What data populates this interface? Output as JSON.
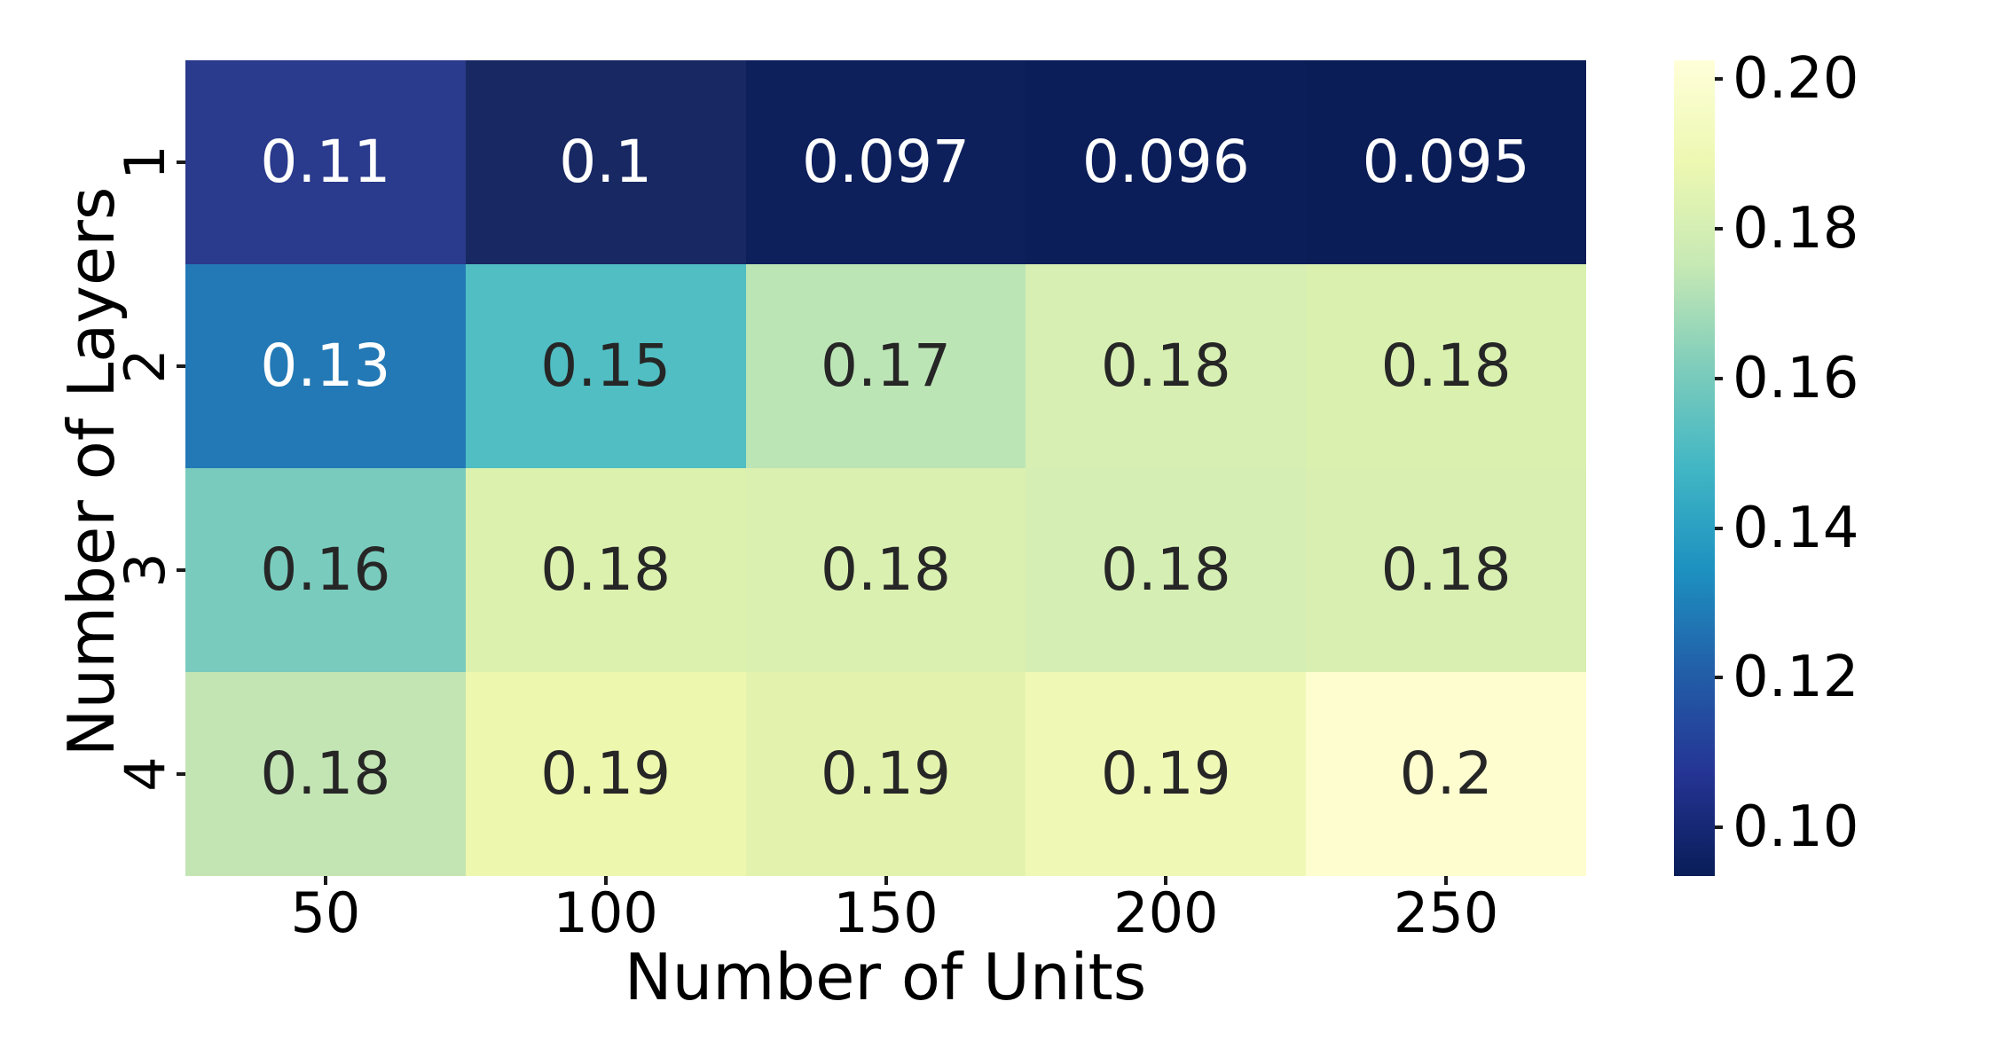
{
  "chart_data": {
    "type": "heatmap",
    "title": "",
    "xlabel": "Number of Units",
    "ylabel": "Number of Layers",
    "x_categories": [
      "50",
      "100",
      "150",
      "200",
      "250"
    ],
    "y_categories": [
      "1",
      "2",
      "3",
      "4"
    ],
    "values": [
      [
        0.11,
        0.1,
        0.097,
        0.096,
        0.095
      ],
      [
        0.13,
        0.15,
        0.17,
        0.18,
        0.18
      ],
      [
        0.16,
        0.18,
        0.18,
        0.18,
        0.18
      ],
      [
        0.18,
        0.19,
        0.19,
        0.19,
        0.2
      ]
    ],
    "annotations": [
      [
        "0.11",
        "0.1",
        "0.097",
        "0.096",
        "0.095"
      ],
      [
        "0.13",
        "0.15",
        "0.17",
        "0.18",
        "0.18"
      ],
      [
        "0.16",
        "0.18",
        "0.18",
        "0.18",
        "0.18"
      ],
      [
        "0.18",
        "0.19",
        "0.19",
        "0.19",
        "0.2"
      ]
    ],
    "cell_colors": [
      [
        "#2a3a8c",
        "#182863",
        "#0d205c",
        "#0b1e59",
        "#0a1d56"
      ],
      [
        "#2379b5",
        "#50bec3",
        "#bce5b6",
        "#d7efb2",
        "#d9f0af"
      ],
      [
        "#79cbbd",
        "#dcf1ae",
        "#daf0b0",
        "#d5eeb3",
        "#d8efb1"
      ],
      [
        "#c3e5b4",
        "#eef7ae",
        "#e3f3ad",
        "#f0f8b6",
        "#fdfdcf"
      ]
    ],
    "cell_text_colors": [
      [
        "#ffffff",
        "#ffffff",
        "#ffffff",
        "#ffffff",
        "#ffffff"
      ],
      [
        "#ffffff",
        "#262626",
        "#262626",
        "#262626",
        "#262626"
      ],
      [
        "#262626",
        "#262626",
        "#262626",
        "#262626",
        "#262626"
      ],
      [
        "#262626",
        "#262626",
        "#262626",
        "#262626",
        "#262626"
      ]
    ],
    "grid": false,
    "legend_position": "none",
    "colormap": "YlGnBu_r",
    "colorbar": {
      "position": "right",
      "range": [
        0.0935,
        0.2025
      ],
      "tick_labels": [
        "0.20",
        "0.18",
        "0.16",
        "0.14",
        "0.12",
        "0.10"
      ],
      "tick_values": [
        0.2,
        0.18,
        0.16,
        0.14,
        0.12,
        0.1
      ],
      "gradient_top_to_bottom": [
        "#ffffd9",
        "#edf8b1",
        "#c7e9b4",
        "#7fcdbb",
        "#41b6c4",
        "#1d91c0",
        "#225ea8",
        "#253494",
        "#081d58"
      ]
    }
  }
}
